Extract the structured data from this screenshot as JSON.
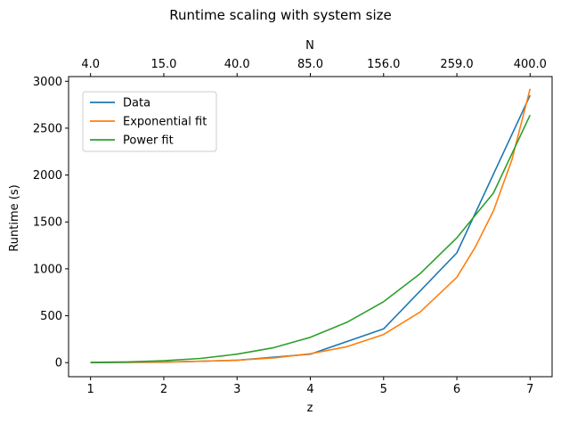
{
  "chart_data": {
    "type": "line",
    "title": "Runtime scaling with system size",
    "xlabel": "z",
    "ylabel": "Runtime (s)",
    "top_xlabel": "N",
    "xlim": [
      0.7,
      7.3
    ],
    "ylim": [
      -150,
      3050
    ],
    "x_ticks": [
      1,
      2,
      3,
      4,
      5,
      6,
      7
    ],
    "y_ticks": [
      0,
      500,
      1000,
      1500,
      2000,
      2500,
      3000
    ],
    "top_ticks": [
      {
        "z": 1,
        "label": "4.0"
      },
      {
        "z": 2,
        "label": "15.0"
      },
      {
        "z": 3,
        "label": "40.0"
      },
      {
        "z": 4,
        "label": "85.0"
      },
      {
        "z": 5,
        "label": "156.0"
      },
      {
        "z": 6,
        "label": "259.0"
      },
      {
        "z": 7,
        "label": "400.0"
      }
    ],
    "legend_position": "upper-left",
    "series": [
      {
        "name": "Data",
        "color": "#1f77b4",
        "x": [
          1,
          2,
          3,
          4,
          5,
          6,
          7
        ],
        "y": [
          0,
          5,
          25,
          90,
          360,
          1170,
          2850
        ]
      },
      {
        "name": "Exponential fit",
        "color": "#ff7f0e",
        "x": [
          1,
          1.5,
          2,
          2.5,
          3,
          3.5,
          4,
          4.5,
          5,
          5.5,
          6,
          6.25,
          6.5,
          6.75,
          7
        ],
        "y": [
          2,
          4,
          7,
          14,
          27,
          50,
          95,
          170,
          300,
          540,
          910,
          1230,
          1620,
          2160,
          2920
        ]
      },
      {
        "name": "Power fit",
        "color": "#2ca02c",
        "x": [
          1,
          1.5,
          2,
          2.5,
          3,
          3.5,
          4,
          4.5,
          5,
          5.5,
          6,
          6.5,
          7
        ],
        "y": [
          3,
          8,
          20,
          45,
          90,
          160,
          270,
          430,
          650,
          950,
          1330,
          1810,
          2640
        ]
      }
    ]
  }
}
